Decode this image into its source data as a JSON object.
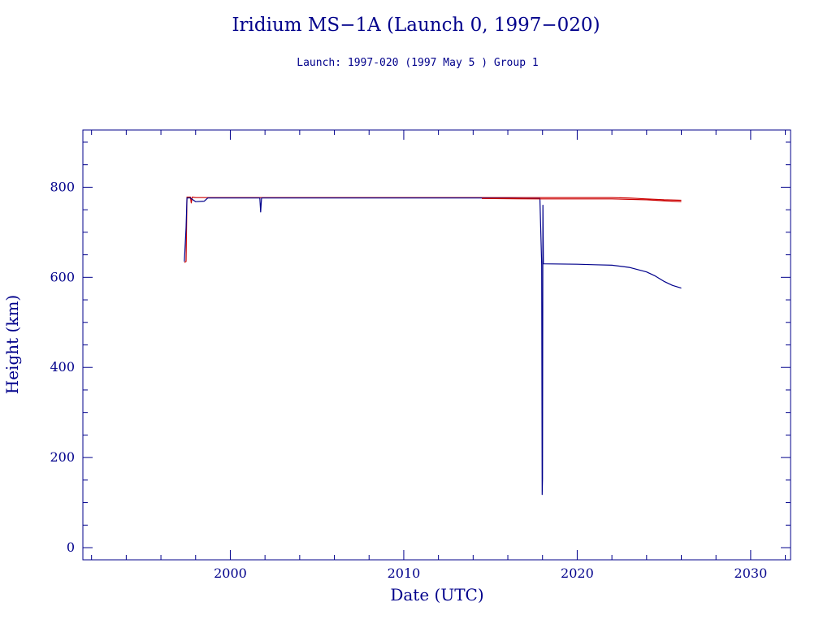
{
  "chart_data": {
    "type": "line",
    "title": "Iridium MS−1A (Launch 0, 1997−020)",
    "subtitle": "Launch: 1997-020  (1997 May  5 )  Group 1",
    "xlabel": "Date (UTC)",
    "ylabel": "Height (km)",
    "xlim": [
      1991.5,
      2032.3
    ],
    "ylim": [
      -27,
      927
    ],
    "x_ticks": [
      2000,
      2010,
      2020,
      2030
    ],
    "y_ticks": [
      0,
      200,
      400,
      600,
      800
    ],
    "grid": false,
    "legend": "none",
    "colors": {
      "axis": "#00008b",
      "apogee": "#cc0000",
      "perigee": "#00008b"
    },
    "series": [
      {
        "color": "#cc0000",
        "points": [
          [
            1997.35,
            633
          ],
          [
            1997.45,
            635
          ],
          [
            1997.5,
            778
          ],
          [
            1997.7,
            778
          ],
          [
            1997.75,
            765
          ],
          [
            1997.8,
            778
          ],
          [
            1998.0,
            777
          ],
          [
            1998.4,
            777
          ],
          [
            1999.0,
            777
          ],
          [
            2005.0,
            777
          ],
          [
            2010.0,
            777
          ],
          [
            2015.0,
            777
          ],
          [
            2020.0,
            777
          ],
          [
            2022.0,
            777
          ],
          [
            2023.0,
            776
          ],
          [
            2024.0,
            774
          ],
          [
            2025.0,
            772
          ],
          [
            2026.0,
            771
          ]
        ]
      },
      {
        "color": "#00008b",
        "points": [
          [
            1997.35,
            635
          ],
          [
            1997.45,
            710
          ],
          [
            1997.5,
            776
          ],
          [
            1997.7,
            776
          ],
          [
            1998.0,
            768
          ],
          [
            1998.5,
            769
          ],
          [
            1998.7,
            776
          ],
          [
            2001.7,
            776
          ],
          [
            2001.75,
            745
          ],
          [
            2001.8,
            776
          ],
          [
            2010.0,
            776
          ],
          [
            2014.5,
            776
          ],
          [
            2017.0,
            775
          ],
          [
            2017.85,
            775
          ],
          [
            2017.95,
            628
          ],
          [
            2017.98,
            118
          ],
          [
            2018.0,
            152
          ],
          [
            2018.02,
            760
          ],
          [
            2018.05,
            630
          ],
          [
            2020.0,
            629
          ],
          [
            2021.0,
            628
          ],
          [
            2022.0,
            627
          ],
          [
            2023.0,
            622
          ],
          [
            2024.0,
            612
          ],
          [
            2024.5,
            603
          ],
          [
            2025.0,
            591
          ],
          [
            2025.5,
            582
          ],
          [
            2026.0,
            576
          ]
        ]
      },
      {
        "color": "#cc0000",
        "points": [
          [
            2014.5,
            775
          ],
          [
            2017.8,
            774
          ],
          [
            2018.2,
            774
          ],
          [
            2020.0,
            774
          ],
          [
            2022.0,
            774
          ],
          [
            2023.0,
            773
          ],
          [
            2024.0,
            772
          ],
          [
            2025.0,
            770
          ],
          [
            2026.0,
            768
          ]
        ]
      }
    ]
  }
}
